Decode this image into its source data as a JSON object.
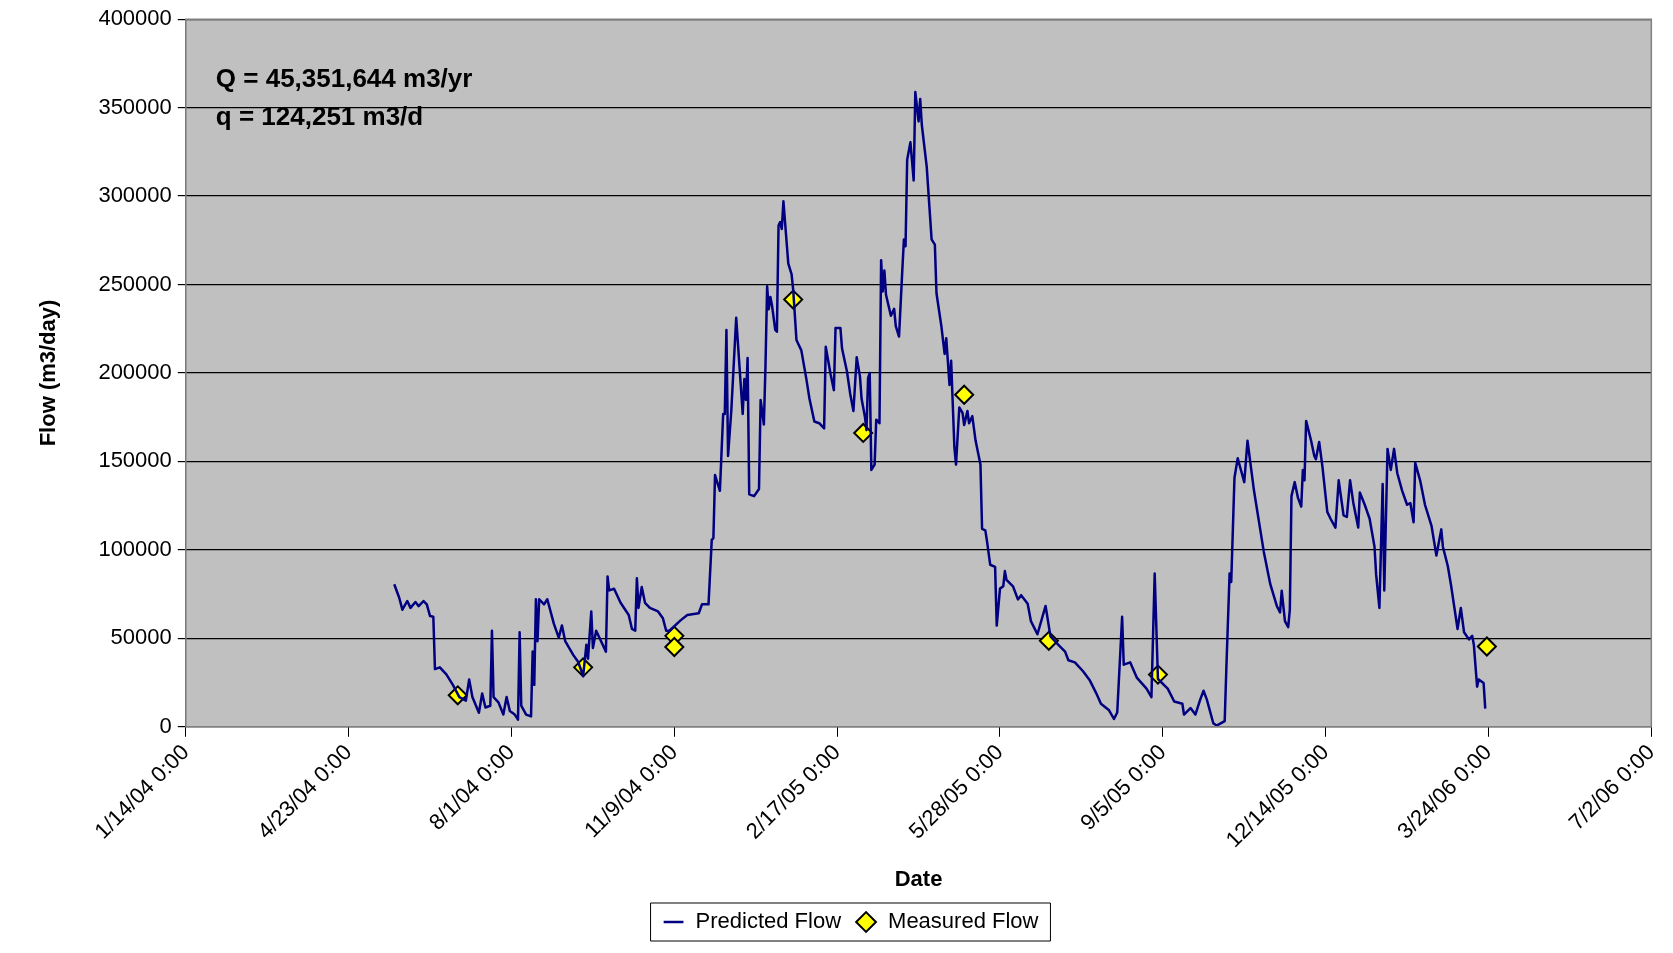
{
  "chart_data": {
    "type": "line",
    "xlabel": "Date",
    "ylabel": "Flow (m3/day)",
    "annotations": [
      "Q = 45,351,644 m3/yr",
      "q = 124,251 m3/d"
    ],
    "xlim": [
      "2004-01-14",
      "2006-07-02"
    ],
    "xticks": [
      {
        "value": "2004-01-14",
        "label": "1/14/04 0:00"
      },
      {
        "value": "2004-04-23",
        "label": "4/23/04 0:00"
      },
      {
        "value": "2004-08-01",
        "label": "8/1/04 0:00"
      },
      {
        "value": "2004-11-09",
        "label": "11/9/04 0:00"
      },
      {
        "value": "2005-02-17",
        "label": "2/17/05 0:00"
      },
      {
        "value": "2005-05-28",
        "label": "5/28/05 0:00"
      },
      {
        "value": "2005-09-05",
        "label": "9/5/05 0:00"
      },
      {
        "value": "2005-12-14",
        "label": "12/14/05 0:00"
      },
      {
        "value": "2006-03-24",
        "label": "3/24/06 0:00"
      },
      {
        "value": "2006-07-02",
        "label": "7/2/06 0:00"
      }
    ],
    "ylim": [
      0,
      400000
    ],
    "yticks": [
      0,
      50000,
      100000,
      150000,
      200000,
      250000,
      300000,
      350000,
      400000
    ],
    "grid": "y",
    "legend": "bottom",
    "line_style": "solid",
    "series": [
      {
        "name": "Predicted Flow",
        "type": "line",
        "marker": "none",
        "color": "#000080",
        "x": [
          "2004-05-21",
          "2004-05-24",
          "2004-05-26",
          "2004-05-29",
          "2004-05-31",
          "2004-06-03",
          "2004-06-05",
          "2004-06-08",
          "2004-06-10",
          "2004-06-12",
          "2004-06-14",
          "2004-06-15",
          "2004-06-18",
          "2004-06-22",
          "2004-06-26",
          "2004-06-30",
          "2004-07-04",
          "2004-07-06",
          "2004-07-08",
          "2004-07-12",
          "2004-07-14",
          "2004-07-16",
          "2004-07-19",
          "2004-07-20",
          "2004-07-21",
          "2004-07-24",
          "2004-07-27",
          "2004-07-29",
          "2004-07-31",
          "2004-08-03",
          "2004-08-05",
          "2004-08-06",
          "2004-08-07",
          "2004-08-10",
          "2004-08-13",
          "2004-08-14",
          "2004-08-15",
          "2004-08-16",
          "2004-08-17",
          "2004-08-18",
          "2004-08-21",
          "2004-08-23",
          "2004-08-27",
          "2004-08-30",
          "2004-09-01",
          "2004-09-03",
          "2004-09-08",
          "2004-09-11",
          "2004-09-14",
          "2004-09-16",
          "2004-09-17",
          "2004-09-19",
          "2004-09-20",
          "2004-09-22",
          "2004-09-28",
          "2004-09-29",
          "2004-09-30",
          "2004-10-03",
          "2004-10-07",
          "2004-10-12",
          "2004-10-14",
          "2004-10-16",
          "2004-10-17",
          "2004-10-18",
          "2004-10-20",
          "2004-10-22",
          "2004-10-25",
          "2004-10-30",
          "2004-11-02",
          "2004-11-04",
          "2004-11-06",
          "2004-11-13",
          "2004-11-17",
          "2004-11-24",
          "2004-11-26",
          "2004-11-30",
          "2004-12-02",
          "2004-12-03",
          "2004-12-04",
          "2004-12-07",
          "2004-12-09",
          "2004-12-10",
          "2004-12-11",
          "2004-12-12",
          "2004-12-14",
          "2004-12-17",
          "2004-12-21",
          "2004-12-22",
          "2004-12-23",
          "2004-12-24",
          "2004-12-25",
          "2004-12-28",
          "2004-12-31",
          "2005-01-01",
          "2005-01-03",
          "2005-01-04",
          "2005-01-05",
          "2005-01-06",
          "2005-01-07",
          "2005-01-08",
          "2005-01-10",
          "2005-01-11",
          "2005-01-12",
          "2005-01-13",
          "2005-01-14",
          "2005-01-15",
          "2005-01-18",
          "2005-01-20",
          "2005-01-21",
          "2005-01-23",
          "2005-01-26",
          "2005-01-29",
          "2005-01-31",
          "2005-02-03",
          "2005-02-06",
          "2005-02-09",
          "2005-02-10",
          "2005-02-13",
          "2005-02-15",
          "2005-02-16",
          "2005-02-19",
          "2005-02-20",
          "2005-02-23",
          "2005-02-25",
          "2005-02-27",
          "2005-03-01",
          "2005-03-03",
          "2005-03-04",
          "2005-03-06",
          "2005-03-07",
          "2005-03-08",
          "2005-03-09",
          "2005-03-10",
          "2005-03-12",
          "2005-03-13",
          "2005-03-15",
          "2005-03-16",
          "2005-03-17",
          "2005-03-18",
          "2005-03-19",
          "2005-03-22",
          "2005-03-24",
          "2005-03-25",
          "2005-03-27",
          "2005-03-29",
          "2005-03-30",
          "2005-03-31",
          "2005-04-01",
          "2005-04-03",
          "2005-04-05",
          "2005-04-06",
          "2005-04-08",
          "2005-04-09",
          "2005-04-10",
          "2005-04-13",
          "2005-04-16",
          "2005-04-18",
          "2005-04-19",
          "2005-04-22",
          "2005-04-24",
          "2005-04-25",
          "2005-04-27",
          "2005-04-28",
          "2005-04-30",
          "2005-05-01",
          "2005-05-03",
          "2005-05-05",
          "2005-05-06",
          "2005-05-08",
          "2005-05-09",
          "2005-05-11",
          "2005-05-13",
          "2005-05-16",
          "2005-05-17",
          "2005-05-19",
          "2005-05-20",
          "2005-05-22",
          "2005-05-25",
          "2005-05-26",
          "2005-05-28",
          "2005-05-30",
          "2005-05-31",
          "2005-06-01",
          "2005-06-05",
          "2005-06-08",
          "2005-06-10",
          "2005-06-14",
          "2005-06-16",
          "2005-06-20",
          "2005-06-25",
          "2005-06-28",
          "2005-07-03",
          "2005-07-07",
          "2005-07-09",
          "2005-07-13",
          "2005-07-18",
          "2005-07-22",
          "2005-07-26",
          "2005-07-29",
          "2005-08-03",
          "2005-08-06",
          "2005-08-08",
          "2005-08-11",
          "2005-08-12",
          "2005-08-16",
          "2005-08-20",
          "2005-08-26",
          "2005-08-29",
          "2005-08-31",
          "2005-09-02",
          "2005-09-08",
          "2005-09-12",
          "2005-09-17",
          "2005-09-18",
          "2005-09-22",
          "2005-09-25",
          "2005-09-28",
          "2005-09-30",
          "2005-10-02",
          "2005-10-06",
          "2005-10-08",
          "2005-10-13",
          "2005-10-14",
          "2005-10-16",
          "2005-10-17",
          "2005-10-19",
          "2005-10-21",
          "2005-10-25",
          "2005-10-27",
          "2005-10-31",
          "2005-11-06",
          "2005-11-10",
          "2005-11-14",
          "2005-11-16",
          "2005-11-17",
          "2005-11-19",
          "2005-11-21",
          "2005-11-22",
          "2005-11-23",
          "2005-11-25",
          "2005-11-27",
          "2005-11-29",
          "2005-11-30",
          "2005-12-01",
          "2005-12-02",
          "2005-12-05",
          "2005-12-07",
          "2005-12-08",
          "2005-12-10",
          "2005-12-12",
          "2005-12-15",
          "2005-12-17",
          "2005-12-20",
          "2005-12-22",
          "2005-12-25",
          "2005-12-27",
          "2005-12-29",
          "2005-12-31",
          "2006-01-03",
          "2006-01-04",
          "2006-01-07",
          "2006-01-10",
          "2006-01-13",
          "2006-01-14",
          "2006-01-16",
          "2006-01-18",
          "2006-01-19",
          "2006-01-21",
          "2006-01-23",
          "2006-01-25",
          "2006-01-27",
          "2006-01-30",
          "2006-02-02",
          "2006-02-04",
          "2006-02-06",
          "2006-02-07",
          "2006-02-10",
          "2006-02-13",
          "2006-02-17",
          "2006-02-20",
          "2006-02-23",
          "2006-02-24",
          "2006-02-27",
          "2006-03-01",
          "2006-03-05",
          "2006-03-07",
          "2006-03-09",
          "2006-03-12",
          "2006-03-14",
          "2006-03-15",
          "2006-03-17",
          "2006-03-18",
          "2006-03-21",
          "2006-03-22"
        ],
        "values": [
          80600,
          73100,
          66200,
          71100,
          67200,
          70500,
          68200,
          71100,
          69200,
          62600,
          62200,
          32600,
          33600,
          29600,
          23700,
          16800,
          14800,
          26700,
          16800,
          7900,
          18800,
          10900,
          11900,
          54300,
          16800,
          13800,
          6900,
          16800,
          8900,
          6900,
          4000,
          53400,
          11900,
          6900,
          5900,
          42500,
          23700,
          72100,
          48400,
          72100,
          69200,
          72100,
          58300,
          50400,
          57300,
          48400,
          40500,
          36600,
          28700,
          46400,
          38500,
          65200,
          44500,
          54300,
          42500,
          85000,
          77100,
          78000,
          70100,
          63200,
          55300,
          54300,
          84000,
          67200,
          79000,
          70100,
          67200,
          65200,
          61300,
          54300,
          54300,
          60300,
          63200,
          64200,
          69200,
          69200,
          105700,
          106700,
          142300,
          133400,
          176800,
          176800,
          224300,
          153100,
          178800,
          231200,
          176800,
          196600,
          184800,
          208500,
          131400,
          130400,
          134400,
          184800,
          170900,
          204500,
          249000,
          236100,
          243000,
          238100,
          224300,
          223300,
          283400,
          285300,
          281400,
          297100,
          261800,
          255900,
          247100,
          218700,
          212800,
          197100,
          185400,
          172600,
          171600,
          168700,
          214800,
          199100,
          190300,
          225500,
          225500,
          213800,
          201000,
          188300,
          178500,
          208900,
          198100,
          185400,
          175600,
          167700,
          197100,
          200000,
          145200,
          148200,
          173600,
          171600,
          263800,
          246100,
          257900,
          244200,
          232400,
          236300,
          226500,
          220600,
          257900,
          275500,
          271600,
          320600,
          330400,
          308800,
          358800,
          342200,
          354900,
          340200,
          316700,
          275500,
          272600,
          245100,
          226500,
          210800,
          219600,
          193200,
          206900,
          157900,
          148200,
          180500,
          177500,
          170600,
          178500,
          171600,
          175600,
          161800,
          148200,
          111900,
          111000,
          105000,
          91600,
          90400,
          57200,
          78100,
          79400,
          88000,
          83000,
          79400,
          72000,
          74400,
          69500,
          59700,
          52300,
          68300,
          51100,
          46200,
          42500,
          37600,
          36400,
          31400,
          26500,
          19200,
          13000,
          9300,
          4400,
          8100,
          62200,
          35100,
          36400,
          27800,
          21600,
          16700,
          86700,
          27000,
          21600,
          14300,
          13000,
          6900,
          10600,
          6900,
          15500,
          20400,
          15500,
          2000,
          700,
          3200,
          32700,
          86700,
          81800,
          140800,
          151800,
          138300,
          161700,
          133400,
          99000,
          80600,
          68300,
          64600,
          76900,
          59700,
          56300,
          66200,
          130400,
          138300,
          129400,
          124500,
          145200,
          139300,
          172900,
          162000,
          153200,
          151200,
          161000,
          147200,
          121500,
          117600,
          112600,
          139300,
          119500,
          118600,
          139300,
          126500,
          112600,
          132400,
          125500,
          117600,
          101800,
          86000,
          67200,
          137300,
          77100,
          157100,
          145200,
          157100,
          143300,
          133400,
          125500,
          126500,
          115600,
          149200,
          139300,
          125500,
          113600,
          96800,
          111600,
          101800,
          90900,
          80000,
          55300,
          67200,
          53400,
          49400,
          51400,
          46400,
          22700,
          26700,
          24700,
          10300
        ]
      },
      {
        "name": "Measured Flow",
        "type": "scatter",
        "marker": "diamond",
        "color": "#ffff00",
        "x": [
          "2004-06-29",
          "2004-09-14",
          "2004-11-09",
          "2004-11-09",
          "2005-01-21",
          "2005-03-05",
          "2005-05-06",
          "2005-06-27",
          "2005-09-02",
          "2006-03-23"
        ],
        "values": [
          17800,
          33600,
          51400,
          45100,
          241500,
          166100,
          187700,
          48600,
          29500,
          45400
        ]
      }
    ]
  }
}
